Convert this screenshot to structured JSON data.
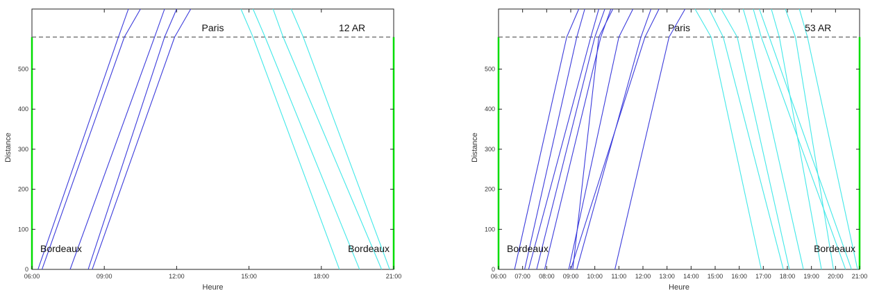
{
  "chart_data": [
    {
      "type": "line",
      "xlabel": "Heure",
      "ylabel": "Distance",
      "xlim": [
        "06:00",
        "21:00"
      ],
      "ylim": [
        0,
        650
      ],
      "xticks": [
        "06:00",
        "09:00",
        "12:00",
        "15:00",
        "18:00",
        "21:00"
      ],
      "yticks": [
        0,
        100,
        200,
        300,
        400,
        500
      ],
      "reference_distance": 580,
      "annotations": {
        "top_label": "Paris",
        "count_label": "12 AR",
        "bottom_left": "Bordeaux",
        "bottom_right": "Bordeaux"
      },
      "colors": {
        "to_paris": "#3a3adb",
        "to_bordeaux": "#40e8e8",
        "axis_side": "#00dd00",
        "reference": "#666666"
      },
      "series": [
        {
          "direction": "to_paris",
          "trains": [
            [
              [
                "06:15",
                0
              ],
              [
                "09:35",
                580
              ],
              [
                "10:00",
                650
              ]
            ],
            [
              [
                "06:25",
                0
              ],
              [
                "09:50",
                580
              ],
              [
                "10:30",
                650
              ]
            ],
            [
              [
                "07:35",
                0
              ],
              [
                "11:05",
                580
              ],
              [
                "11:30",
                650
              ]
            ],
            [
              [
                "08:20",
                0
              ],
              [
                "11:30",
                580
              ],
              [
                "12:00",
                650
              ]
            ],
            [
              [
                "08:30",
                0
              ],
              [
                "11:55",
                580
              ],
              [
                "12:35",
                650
              ]
            ]
          ]
        },
        {
          "direction": "to_bordeaux",
          "trains": [
            [
              [
                "14:40",
                650
              ],
              [
                "15:10",
                580
              ],
              [
                "18:45",
                0
              ]
            ],
            [
              [
                "15:10",
                650
              ],
              [
                "15:40",
                580
              ],
              [
                "19:35",
                0
              ]
            ],
            [
              [
                "16:00",
                650
              ],
              [
                "16:25",
                580
              ],
              [
                "20:30",
                0
              ]
            ],
            [
              [
                "16:45",
                650
              ],
              [
                "17:15",
                580
              ],
              [
                "20:50",
                0
              ]
            ]
          ]
        }
      ]
    },
    {
      "type": "line",
      "xlabel": "Heure",
      "ylabel": "Distance",
      "xlim": [
        "06:00",
        "21:00"
      ],
      "ylim": [
        0,
        650
      ],
      "xticks": [
        "06:00",
        "07:00",
        "08:00",
        "09:00",
        "10:00",
        "11:00",
        "12:00",
        "13:00",
        "14:00",
        "15:00",
        "16:00",
        "17:00",
        "18:00",
        "19:00",
        "20:00",
        "21:00"
      ],
      "yticks": [
        0,
        100,
        200,
        300,
        400,
        500
      ],
      "reference_distance": 580,
      "annotations": {
        "top_label": "Paris",
        "count_label": "53 AR",
        "bottom_left": "Bordeaux",
        "bottom_right": "Bordeaux"
      },
      "colors": {
        "to_paris": "#3a3adb",
        "to_bordeaux": "#40e8e8",
        "axis_side": "#00dd00",
        "reference": "#666666"
      },
      "series": [
        {
          "direction": "to_paris",
          "trains": [
            [
              [
                "06:40",
                0
              ],
              [
                "08:50",
                580
              ],
              [
                "09:20",
                650
              ]
            ],
            [
              [
                "07:05",
                0
              ],
              [
                "09:15",
                580
              ],
              [
                "09:35",
                650
              ]
            ],
            [
              [
                "07:15",
                0
              ],
              [
                "09:50",
                580
              ],
              [
                "10:10",
                650
              ]
            ],
            [
              [
                "07:35",
                0
              ],
              [
                "10:00",
                580
              ],
              [
                "10:25",
                650
              ]
            ],
            [
              [
                "07:55",
                0
              ],
              [
                "10:15",
                580
              ],
              [
                "10:40",
                650
              ]
            ],
            [
              [
                "08:55",
                0
              ],
              [
                "11:00",
                580
              ],
              [
                "11:35",
                650
              ]
            ],
            [
              [
                "09:05",
                0
              ],
              [
                "10:10",
                580
              ],
              [
                "10:45",
                650
              ]
            ],
            [
              [
                "10:50",
                0
              ],
              [
                "13:05",
                580
              ],
              [
                "13:45",
                650
              ]
            ],
            [
              [
                "09:00",
                0
              ],
              [
                "12:05",
                580
              ],
              [
                "12:40",
                650
              ]
            ],
            [
              [
                "09:15",
                0
              ],
              [
                "11:55",
                580
              ],
              [
                "12:20",
                650
              ]
            ]
          ]
        },
        {
          "direction": "to_bordeaux",
          "trains": [
            [
              [
                "14:10",
                650
              ],
              [
                "14:50",
                580
              ],
              [
                "16:55",
                0
              ]
            ],
            [
              [
                "14:45",
                650
              ],
              [
                "15:20",
                580
              ],
              [
                "17:50",
                0
              ]
            ],
            [
              [
                "15:15",
                650
              ],
              [
                "15:55",
                580
              ],
              [
                "18:05",
                0
              ]
            ],
            [
              [
                "16:10",
                650
              ],
              [
                "16:30",
                580
              ],
              [
                "18:40",
                0
              ]
            ],
            [
              [
                "16:35",
                650
              ],
              [
                "16:55",
                580
              ],
              [
                "20:25",
                0
              ]
            ],
            [
              [
                "16:50",
                650
              ],
              [
                "17:15",
                580
              ],
              [
                "20:40",
                0
              ]
            ],
            [
              [
                "17:20",
                650
              ],
              [
                "17:40",
                580
              ],
              [
                "19:25",
                0
              ]
            ],
            [
              [
                "17:55",
                650
              ],
              [
                "18:20",
                580
              ],
              [
                "19:55",
                0
              ]
            ],
            [
              [
                "18:30",
                650
              ],
              [
                "18:50",
                580
              ],
              [
                "20:55",
                0
              ]
            ]
          ]
        }
      ]
    }
  ]
}
